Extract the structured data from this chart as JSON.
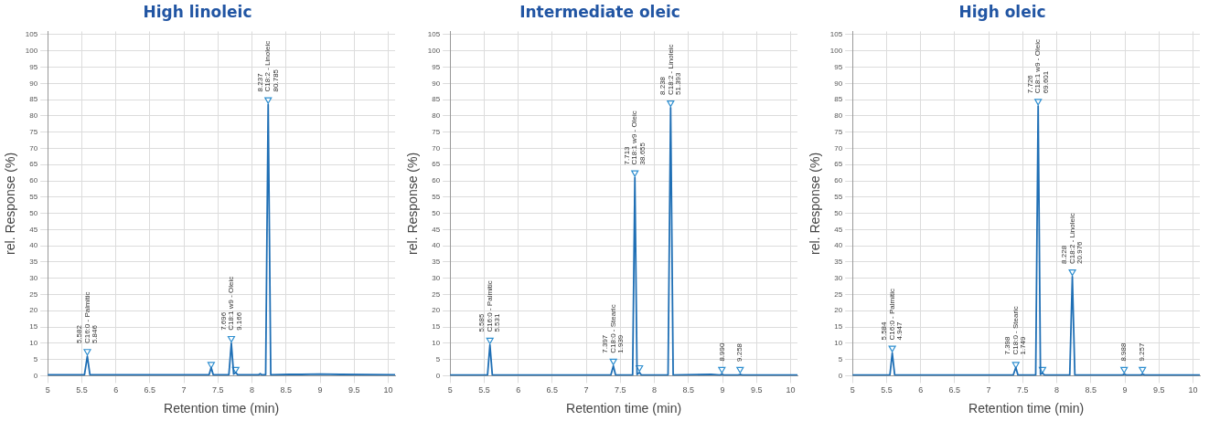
{
  "chart_data": [
    {
      "type": "line",
      "title": "High linoleic",
      "xlabel": "Retention time (min)",
      "ylabel": "rel. Response (%)",
      "x": [
        5,
        5.54,
        5.582,
        5.62,
        7.37,
        7.4,
        7.43,
        7.66,
        7.696,
        7.73,
        7.76,
        7.79,
        8.1,
        8.12,
        8.14,
        8.2,
        8.237,
        8.275,
        8.55,
        8.72,
        9,
        9.3,
        10.1
      ],
      "series": [
        {
          "color": "#1f6fb5",
          "values": [
            0.3,
            0.3,
            6,
            0.3,
            0.3,
            2.5,
            0.3,
            0.3,
            10,
            0.5,
            1,
            0.3,
            0.3,
            0.6,
            0.3,
            0.3,
            83.5,
            0.3,
            0.4,
            0.4,
            0.5,
            0.4,
            0.3
          ]
        },
        {
          "type": "scatter",
          "marker": "triangle",
          "color": "#2f8fd0",
          "x": [
            5.582,
            7.4,
            7.696,
            7.76,
            8.237
          ],
          "values": [
            7.5,
            3.5,
            11.5,
            2,
            85
          ]
        }
      ],
      "xlim": [
        5,
        10.1
      ],
      "xticks": [
        5,
        5.5,
        6,
        6.5,
        7,
        7.5,
        8,
        8.5,
        9,
        9.5,
        10
      ],
      "ylim": [
        0,
        106
      ],
      "yticks": [
        0,
        5,
        10,
        15,
        20,
        25,
        30,
        35,
        40,
        45,
        50,
        55,
        60,
        65,
        70,
        75,
        80,
        85,
        90,
        95,
        100,
        105
      ],
      "grid": true,
      "legend": false,
      "marker": "none",
      "line_style": "solid",
      "annotations": [
        {
          "text": "5.582\nC16:0 - Palmitic\n5.846",
          "x": 5.582,
          "y": 6
        },
        {
          "text": "7.696\nC18:1 w9 - Oleic\n9.166",
          "x": 7.696,
          "y": 10
        },
        {
          "text": "8.237\nC18:2 - Linoleic\n80.785",
          "x": 8.237,
          "y": 83.5
        }
      ]
    },
    {
      "type": "line",
      "title": "Intermediate oleic",
      "xlabel": "Retention time (min)",
      "ylabel": "rel. Response (%)",
      "x": [
        5,
        5.55,
        5.585,
        5.62,
        7.36,
        7.397,
        7.43,
        7.68,
        7.713,
        7.745,
        7.78,
        7.81,
        8.2,
        8.238,
        8.275,
        8.83,
        8.96,
        8.99,
        9.02,
        9.23,
        9.258,
        9.29,
        10.1
      ],
      "series": [
        {
          "color": "#1f6fb5",
          "values": [
            0.2,
            0.2,
            9.5,
            0.2,
            0.2,
            3,
            0.2,
            0.2,
            61,
            0.4,
            1,
            0.2,
            0.2,
            82.5,
            0.2,
            0.4,
            0.2,
            0.5,
            0.2,
            0.2,
            0.4,
            0.2,
            0.2
          ]
        },
        {
          "type": "scatter",
          "marker": "triangle",
          "color": "#2f8fd0",
          "x": [
            5.585,
            7.397,
            7.713,
            7.78,
            8.238,
            8.99,
            9.258
          ],
          "values": [
            11,
            4.5,
            62.5,
            2.5,
            84,
            2,
            2
          ]
        }
      ],
      "xlim": [
        5,
        10.1
      ],
      "xticks": [
        5,
        5.5,
        6,
        6.5,
        7,
        7.5,
        8,
        8.5,
        9,
        9.5,
        10
      ],
      "ylim": [
        0,
        106
      ],
      "yticks": [
        0,
        5,
        10,
        15,
        20,
        25,
        30,
        35,
        40,
        45,
        50,
        55,
        60,
        65,
        70,
        75,
        80,
        85,
        90,
        95,
        100,
        105
      ],
      "grid": true,
      "legend": false,
      "marker": "none",
      "line_style": "solid",
      "annotations": [
        {
          "text": "5.585\nC16:0 - Palmitic\n5.531",
          "x": 5.585,
          "y": 9.5
        },
        {
          "text": "7.397\nC18:0 - Stearic\n1.939",
          "x": 7.397,
          "y": 3
        },
        {
          "text": "7.713\nC18:1 w9 - Oleic\n38.655",
          "x": 7.713,
          "y": 61
        },
        {
          "text": "8.238\nC18:2 - Linoleic\n51.393",
          "x": 8.238,
          "y": 82.5
        },
        {
          "text": "8.990",
          "x": 8.99,
          "y": 0.5
        },
        {
          "text": "9.258",
          "x": 9.258,
          "y": 0.4
        }
      ]
    },
    {
      "type": "line",
      "title": "High oleic",
      "xlabel": "Retention time (min)",
      "ylabel": "rel. Response (%)",
      "x": [
        5,
        5.55,
        5.584,
        5.62,
        7.36,
        7.398,
        7.43,
        7.69,
        7.726,
        7.76,
        7.79,
        7.82,
        8.19,
        8.228,
        8.265,
        8.96,
        8.988,
        9.02,
        9.23,
        9.257,
        9.29,
        10.1
      ],
      "series": [
        {
          "color": "#1f6fb5",
          "values": [
            0.2,
            0.2,
            7,
            0.2,
            0.2,
            2.5,
            0.2,
            0.2,
            83,
            0.4,
            0.8,
            0.2,
            0.2,
            30.5,
            0.2,
            0.2,
            0.5,
            0.2,
            0.2,
            0.5,
            0.2,
            0.2
          ]
        },
        {
          "type": "scatter",
          "marker": "triangle",
          "color": "#2f8fd0",
          "x": [
            5.584,
            7.398,
            7.726,
            7.79,
            8.228,
            8.988,
            9.257
          ],
          "values": [
            8.5,
            3.5,
            84.5,
            2,
            32,
            2,
            2
          ]
        }
      ],
      "xlim": [
        5,
        10.1
      ],
      "xticks": [
        5,
        5.5,
        6,
        6.5,
        7,
        7.5,
        8,
        8.5,
        9,
        9.5,
        10
      ],
      "ylim": [
        0,
        106
      ],
      "yticks": [
        0,
        5,
        10,
        15,
        20,
        25,
        30,
        35,
        40,
        45,
        50,
        55,
        60,
        65,
        70,
        75,
        80,
        85,
        90,
        95,
        100,
        105
      ],
      "grid": true,
      "legend": false,
      "marker": "none",
      "line_style": "solid",
      "annotations": [
        {
          "text": "5.584\nC16:0 - Palmitic\n4.947",
          "x": 5.584,
          "y": 7
        },
        {
          "text": "7.398\nC18:0 - Stearic\n1.749",
          "x": 7.398,
          "y": 2.5
        },
        {
          "text": "7.726\nC18:1 w9 - Oleic\n69.601",
          "x": 7.726,
          "y": 83
        },
        {
          "text": "8.228\nC18:2 - Linoleic\n20.976",
          "x": 8.228,
          "y": 30.5
        },
        {
          "text": "8.988",
          "x": 8.988,
          "y": 0.5
        },
        {
          "text": "9.257",
          "x": 9.257,
          "y": 0.5
        }
      ]
    }
  ]
}
